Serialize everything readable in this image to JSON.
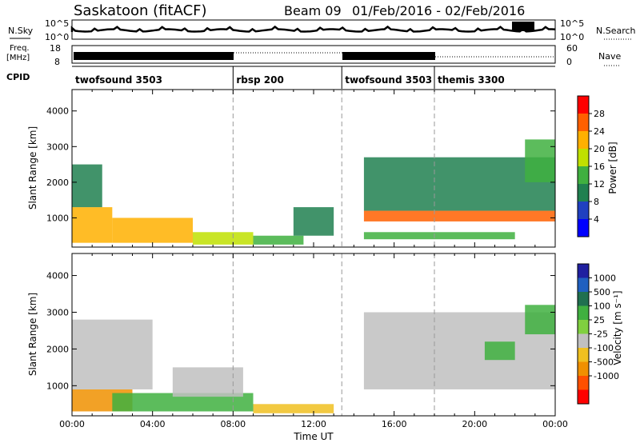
{
  "header": {
    "title": "Saskatoon (fitACF)",
    "beam": "Beam 09",
    "date_range": "01/Feb/2016 - 02/Feb/2016"
  },
  "panels": {
    "nsky": {
      "left_label": "N.Sky",
      "right_label": "N.Search",
      "ticks": [
        "10^5",
        "10^0"
      ]
    },
    "freq": {
      "left_label_1": "Freq.",
      "left_label_2": "[MHz]",
      "left_ticks": [
        "18",
        "8"
      ],
      "right_ticks": [
        "60",
        "0"
      ],
      "right_label": "Nave"
    },
    "cpid": {
      "label": "CPID",
      "segments": [
        {
          "name": "twofsound 3503",
          "start": 0,
          "end": 8
        },
        {
          "name": "rbsp 200",
          "start": 8,
          "end": 13.4
        },
        {
          "name": "twofsound 3503",
          "start": 13.4,
          "end": 18
        },
        {
          "name": "themis 3300",
          "start": 18,
          "end": 24
        }
      ]
    }
  },
  "colorbars": {
    "power": {
      "label": "Power [dB]",
      "ticks": [
        "28",
        "24",
        "20",
        "16",
        "12",
        "8",
        "4"
      ],
      "colors": [
        "#0000ff",
        "#2040c0",
        "#208050",
        "#40b040",
        "#c0e000",
        "#ffb000",
        "#ff6000",
        "#ff0000"
      ]
    },
    "velocity": {
      "label": "Velocity [m s⁻¹]",
      "ticks": [
        "1000",
        "500",
        "100",
        "25",
        "-25",
        "-100",
        "-500",
        "-1000"
      ],
      "colors": [
        "#2020a0",
        "#2060c0",
        "#207050",
        "#40b040",
        "#80d040",
        "#c0c0c0",
        "#f0c020",
        "#f09000",
        "#ff5000",
        "#ff0000"
      ]
    }
  },
  "xaxis": {
    "label": "Time UT",
    "ticks": [
      "00:00",
      "04:00",
      "08:00",
      "12:00",
      "16:00",
      "20:00",
      "00:00"
    ]
  },
  "chart_data": [
    {
      "type": "heatmap",
      "name": "Power",
      "xlabel": "Time UT",
      "ylabel": "Slant Range [km]",
      "xlim": [
        0,
        24
      ],
      "ylim": [
        180,
        4600
      ],
      "yticks": [
        1000,
        2000,
        3000,
        4000
      ],
      "colorbar": {
        "label": "Power [dB]",
        "range": [
          0,
          32
        ]
      },
      "regions": [
        {
          "t0": 0.0,
          "t1": 2.0,
          "r0": 300,
          "r1": 1300,
          "value": 22
        },
        {
          "t0": 2.0,
          "t1": 6.0,
          "r0": 300,
          "r1": 1000,
          "value": 20
        },
        {
          "t0": 6.0,
          "t1": 9.0,
          "r0": 250,
          "r1": 600,
          "value": 16
        },
        {
          "t0": 9.0,
          "t1": 11.5,
          "r0": 250,
          "r1": 500,
          "value": 12
        },
        {
          "t0": 0.0,
          "t1": 1.5,
          "r0": 1300,
          "r1": 2500,
          "value": 10
        },
        {
          "t0": 11.0,
          "t1": 13.0,
          "r0": 500,
          "r1": 1300,
          "value": 8
        },
        {
          "t0": 14.5,
          "t1": 24.0,
          "r0": 900,
          "r1": 1200,
          "value": 24
        },
        {
          "t0": 14.5,
          "t1": 24.0,
          "r0": 1200,
          "r1": 2700,
          "value": 8
        },
        {
          "t0": 22.5,
          "t1": 24.0,
          "r0": 2000,
          "r1": 3200,
          "value": 14
        },
        {
          "t0": 14.5,
          "t1": 22.0,
          "r0": 400,
          "r1": 600,
          "value": 12
        }
      ]
    },
    {
      "type": "heatmap",
      "name": "Velocity",
      "xlabel": "Time UT",
      "ylabel": "Slant Range [km]",
      "xlim": [
        0,
        24
      ],
      "ylim": [
        180,
        4600
      ],
      "yticks": [
        1000,
        2000,
        3000,
        4000
      ],
      "colorbar": {
        "label": "Velocity [m s⁻¹]",
        "range": [
          -1000,
          1000
        ]
      },
      "regions": [
        {
          "t0": 0.0,
          "t1": 3.0,
          "r0": 300,
          "r1": 900,
          "value": -150
        },
        {
          "t0": 2.0,
          "t1": 9.0,
          "r0": 300,
          "r1": 800,
          "value": 150
        },
        {
          "t0": 0.0,
          "t1": 4.0,
          "r0": 900,
          "r1": 2800,
          "value": 0
        },
        {
          "t0": 5.0,
          "t1": 8.5,
          "r0": 700,
          "r1": 1500,
          "value": 0
        },
        {
          "t0": 9.0,
          "t1": 13.0,
          "r0": 250,
          "r1": 500,
          "value": -50
        },
        {
          "t0": 14.5,
          "t1": 24.0,
          "r0": 900,
          "r1": 3000,
          "value": 0
        },
        {
          "t0": 20.5,
          "t1": 22.0,
          "r0": 1700,
          "r1": 2200,
          "value": 150
        },
        {
          "t0": 22.5,
          "t1": 24.0,
          "r0": 2400,
          "r1": 3200,
          "value": 150
        }
      ]
    }
  ]
}
